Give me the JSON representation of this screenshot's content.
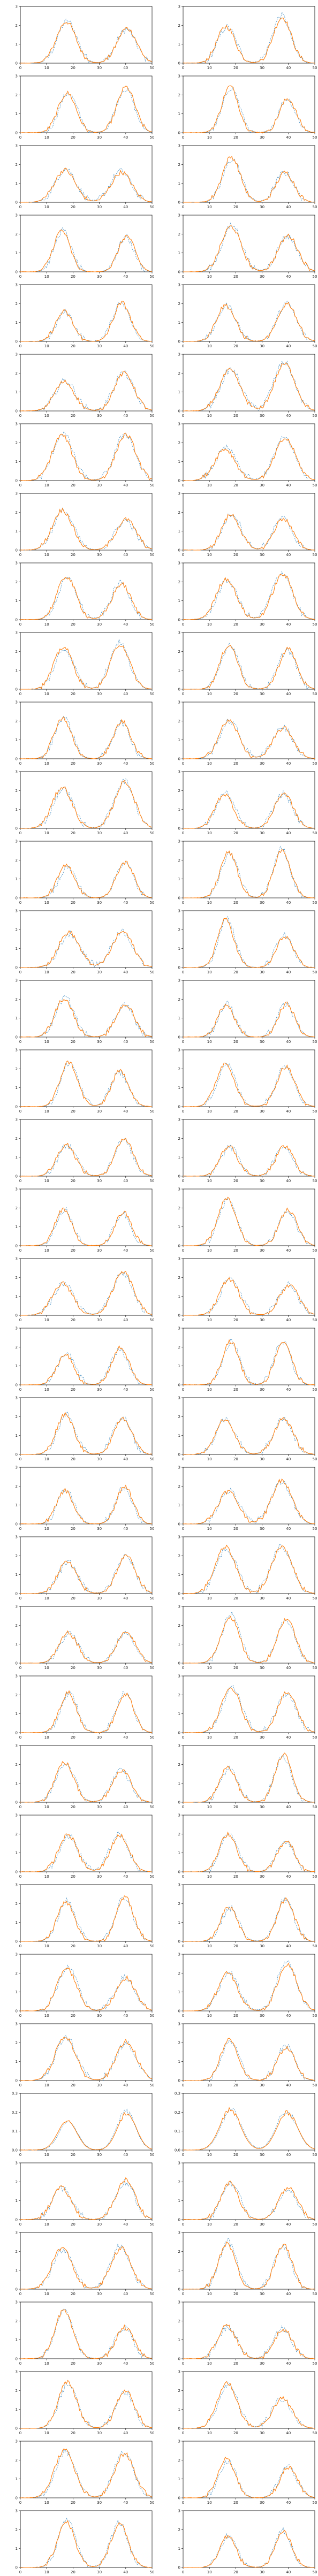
{
  "chart_data": {
    "type": "line",
    "layout": {
      "rows": 37,
      "cols": 2
    },
    "xlim": [
      0,
      50
    ],
    "xticks": [
      0,
      10,
      20,
      30,
      40,
      50
    ],
    "colors": {
      "series_a": "#1f77b4",
      "series_b": "#ff7f0e",
      "axis": "#000000"
    },
    "panel_defaults": {
      "ylim": [
        0,
        3
      ],
      "yticks": [
        0,
        1,
        2,
        3
      ]
    },
    "special_panels": [
      {
        "row": 30,
        "ylim": [
          0,
          0.3
        ],
        "yticks": [
          0.0,
          0.1,
          0.2,
          0.3
        ]
      }
    ],
    "series_shape": {
      "description": "two peaks per panel",
      "peak1_center_x": 17,
      "peak2_center_x": 39,
      "peak_width_x": 5,
      "peak_height_y": 2.2
    }
  }
}
